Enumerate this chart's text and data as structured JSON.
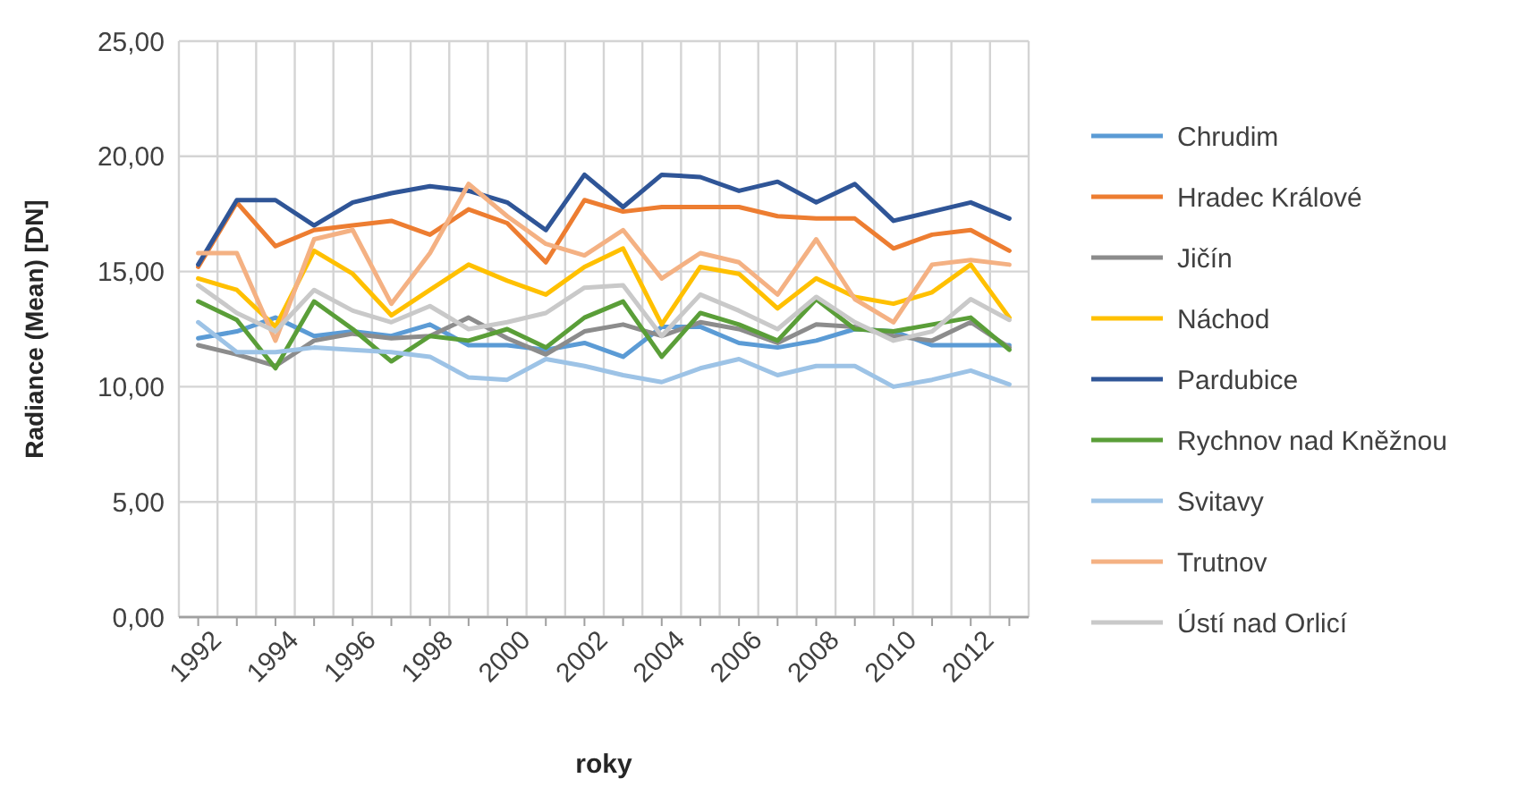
{
  "chart_data": {
    "type": "line",
    "xlabel": "roky",
    "ylabel": "Radiance (Mean) [DN]",
    "categories": [
      "1992",
      null,
      "1994",
      null,
      "1996",
      null,
      "1998",
      null,
      "2000",
      null,
      "2002",
      null,
      "2004",
      null,
      "2006",
      null,
      "2008",
      null,
      "2010",
      null,
      "2012",
      null
    ],
    "ylim": [
      0,
      25
    ],
    "yticks": [
      {
        "value": 0,
        "label": "0,00"
      },
      {
        "value": 5,
        "label": "5,00"
      },
      {
        "value": 10,
        "label": "10,00"
      },
      {
        "value": 15,
        "label": "15,00"
      },
      {
        "value": 20,
        "label": "20,00"
      },
      {
        "value": 25,
        "label": "25,00"
      }
    ],
    "grid": true,
    "legend": "right",
    "marker": "none",
    "line_style": "solid",
    "series": [
      {
        "name": "Chrudim",
        "color": "#5b9bd5",
        "values": [
          12.1,
          12.4,
          13.0,
          12.2,
          12.4,
          12.2,
          12.7,
          11.8,
          11.8,
          11.6,
          11.9,
          11.3,
          12.6,
          12.6,
          11.9,
          11.7,
          12.0,
          12.5,
          12.4,
          11.8,
          11.8,
          11.8
        ]
      },
      {
        "name": "Hradec Králové",
        "color": "#ed7d31",
        "values": [
          15.2,
          18.0,
          16.1,
          16.8,
          17.0,
          17.2,
          16.6,
          17.7,
          17.1,
          15.4,
          18.1,
          17.6,
          17.8,
          17.8,
          17.8,
          17.4,
          17.3,
          17.3,
          16.0,
          16.6,
          16.8,
          15.9
        ]
      },
      {
        "name": "Jičín",
        "color": "#8c8c8c",
        "values": [
          11.8,
          11.4,
          10.9,
          12.0,
          12.3,
          12.1,
          12.2,
          13.0,
          12.1,
          11.4,
          12.4,
          12.7,
          12.2,
          12.8,
          12.5,
          11.9,
          12.7,
          12.6,
          12.2,
          12.0,
          12.8,
          11.7
        ]
      },
      {
        "name": "Náchod",
        "color": "#ffc000",
        "values": [
          14.7,
          14.2,
          12.6,
          15.9,
          14.9,
          13.1,
          14.2,
          15.3,
          14.6,
          14.0,
          15.2,
          16.0,
          12.7,
          15.2,
          14.9,
          13.4,
          14.7,
          13.9,
          13.6,
          14.1,
          15.3,
          13.0
        ]
      },
      {
        "name": "Pardubice",
        "color": "#2f5597",
        "values": [
          15.3,
          18.1,
          18.1,
          17.0,
          18.0,
          18.4,
          18.7,
          18.5,
          18.0,
          16.8,
          19.2,
          17.8,
          19.2,
          19.1,
          18.5,
          18.9,
          18.0,
          18.8,
          17.2,
          17.6,
          18.0,
          17.3
        ]
      },
      {
        "name": "Rychnov nad Kněžnou",
        "color": "#5a9e38",
        "values": [
          13.7,
          12.9,
          10.8,
          13.7,
          12.5,
          11.1,
          12.2,
          12.0,
          12.5,
          11.7,
          13.0,
          13.7,
          11.3,
          13.2,
          12.7,
          12.0,
          13.8,
          12.5,
          12.4,
          12.7,
          13.0,
          11.6
        ]
      },
      {
        "name": "Svitavy",
        "color": "#9dc3e6",
        "values": [
          12.8,
          11.5,
          11.5,
          11.7,
          11.6,
          11.5,
          11.3,
          10.4,
          10.3,
          11.2,
          10.9,
          10.5,
          10.2,
          10.8,
          11.2,
          10.5,
          10.9,
          10.9,
          10.0,
          10.3,
          10.7,
          10.1
        ]
      },
      {
        "name": "Trutnov",
        "color": "#f4b183",
        "values": [
          15.8,
          15.8,
          12.0,
          16.4,
          16.8,
          13.6,
          15.8,
          18.8,
          17.4,
          16.2,
          15.7,
          16.8,
          14.7,
          15.8,
          15.4,
          14.0,
          16.4,
          13.8,
          12.8,
          15.3,
          15.5,
          15.3
        ]
      },
      {
        "name": "Ústí nad Orlicí",
        "color": "#c9c9c9",
        "values": [
          14.4,
          13.2,
          12.4,
          14.2,
          13.3,
          12.8,
          13.5,
          12.5,
          12.8,
          13.2,
          14.3,
          14.4,
          12.2,
          14.0,
          13.3,
          12.5,
          13.9,
          12.8,
          12.0,
          12.4,
          13.8,
          12.9
        ]
      }
    ]
  }
}
